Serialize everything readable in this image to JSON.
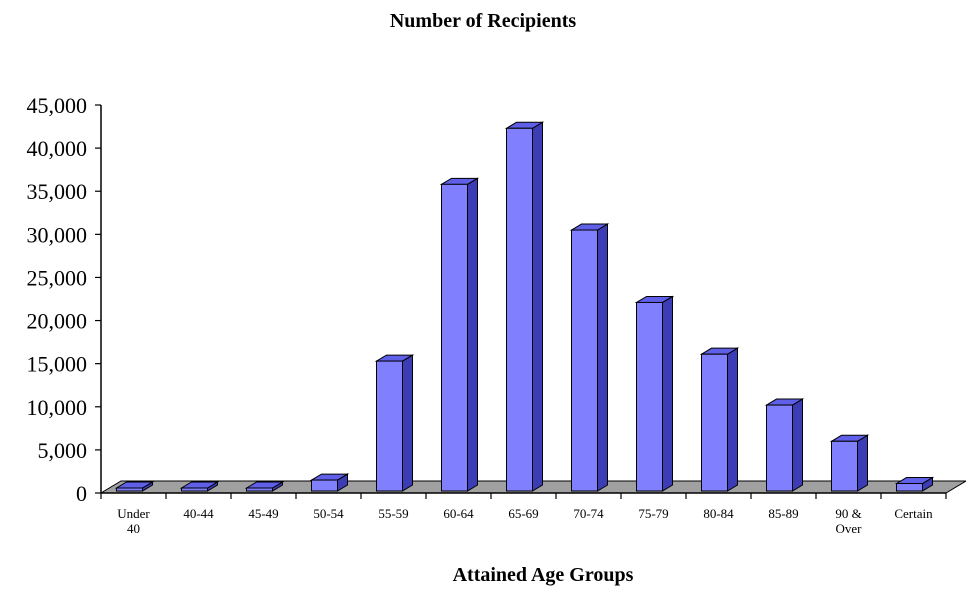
{
  "chart_data": {
    "type": "bar",
    "title": "Number  of Recipients",
    "xlabel": "Attained  Age Groups",
    "ylabel": "",
    "ylim": [
      0,
      45000
    ],
    "yticks": [
      "0",
      "5,000",
      "10,000",
      "15,000",
      "20,000",
      "25,000",
      "30,000",
      "35,000",
      "40,000",
      "45,000"
    ],
    "categories": [
      "Under 40",
      "40-44",
      "45-49",
      "50-54",
      "55-59",
      "60-64",
      "65-69",
      "70-74",
      "75-79",
      "80-84",
      "85-89",
      "90 & Over",
      "Certain"
    ],
    "category_lines": [
      [
        "Under",
        "40"
      ],
      [
        "40-44"
      ],
      [
        "45-49"
      ],
      [
        "50-54"
      ],
      [
        "55-59"
      ],
      [
        "60-64"
      ],
      [
        "65-69"
      ],
      [
        "70-74"
      ],
      [
        "75-79"
      ],
      [
        "80-84"
      ],
      [
        "85-89"
      ],
      [
        "90 &",
        "Over"
      ],
      [
        "Certain"
      ]
    ],
    "values": [
      50,
      20,
      60,
      1500,
      15300,
      35800,
      42300,
      30500,
      22100,
      16100,
      10200,
      6000,
      1100
    ],
    "grid": false,
    "legend": "none",
    "colors": {
      "bar_front": "#8080ff",
      "bar_top": "#5f5fe8",
      "bar_side": "#3c3cb4",
      "floor": "#a0a0a0",
      "outline": "#000000"
    }
  }
}
